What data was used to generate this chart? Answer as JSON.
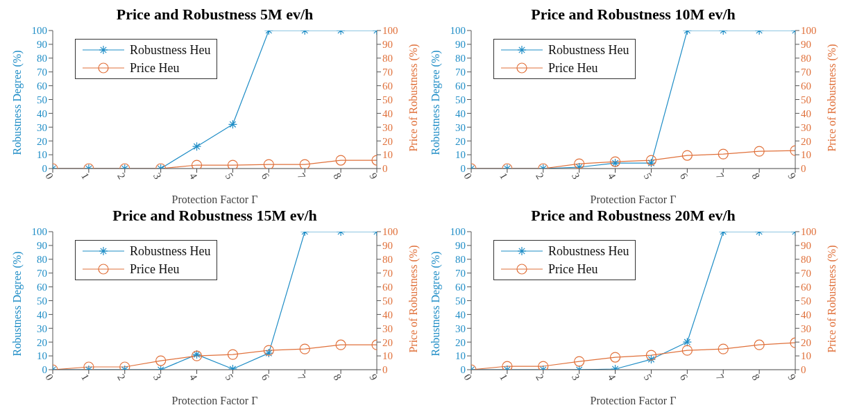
{
  "chart_data": [
    {
      "type": "line",
      "title": "Price and Robustness 5M ev/h",
      "xlabel": "Protection Factor Γ",
      "ylabel": "Robustness Degree (%)",
      "y2label": "Price of Robustness (%)",
      "x": [
        0,
        1,
        2,
        3,
        4,
        5,
        6,
        7,
        8,
        9
      ],
      "xlim": [
        0,
        9
      ],
      "xticks": [
        0,
        1,
        2,
        3,
        4,
        5,
        6,
        7,
        8,
        9
      ],
      "ylim": [
        0,
        100
      ],
      "yticks": [
        0,
        10,
        20,
        30,
        40,
        50,
        60,
        70,
        80,
        90,
        100
      ],
      "y2lim": [
        0,
        100
      ],
      "y2ticks": [
        0,
        10,
        20,
        30,
        40,
        50,
        60,
        70,
        80,
        90,
        100
      ],
      "legend": "top left",
      "grid": false,
      "series": [
        {
          "name": "Robustness Heu",
          "color": "#1f8dc6",
          "marker": "cross",
          "values": [
            0,
            0,
            0,
            0,
            16,
            32,
            100,
            100,
            100,
            100
          ]
        },
        {
          "name": "Price Heu",
          "color": "#e0703a",
          "marker": "circle",
          "axis": "y2",
          "values": [
            0,
            0,
            0,
            0,
            2.5,
            2.5,
            3,
            3,
            6,
            6
          ]
        }
      ]
    },
    {
      "type": "line",
      "title": "Price and Robustness 10M ev/h",
      "xlabel": "Protection Factor Γ",
      "ylabel": "Robustness Degree (%)",
      "y2label": "Price of Robustness (%)",
      "x": [
        0,
        1,
        2,
        3,
        4,
        5,
        6,
        7,
        8,
        9
      ],
      "xlim": [
        0,
        9
      ],
      "xticks": [
        0,
        1,
        2,
        3,
        4,
        5,
        6,
        7,
        8,
        9
      ],
      "ylim": [
        0,
        100
      ],
      "yticks": [
        0,
        10,
        20,
        30,
        40,
        50,
        60,
        70,
        80,
        90,
        100
      ],
      "y2lim": [
        0,
        100
      ],
      "y2ticks": [
        0,
        10,
        20,
        30,
        40,
        50,
        60,
        70,
        80,
        90,
        100
      ],
      "legend": "top left",
      "grid": false,
      "series": [
        {
          "name": "Robustness Heu",
          "color": "#1f8dc6",
          "marker": "cross",
          "values": [
            0,
            0,
            0,
            1,
            4,
            4,
            100,
            100,
            100,
            100
          ]
        },
        {
          "name": "Price Heu",
          "color": "#e0703a",
          "marker": "circle",
          "axis": "y2",
          "values": [
            0,
            0,
            0,
            3.5,
            5,
            6,
            9.5,
            10.5,
            12.5,
            13
          ]
        }
      ]
    },
    {
      "type": "line",
      "title": "Price and Robustness 15M ev/h",
      "xlabel": "Protection Factor Γ",
      "ylabel": "Robustness Degree (%)",
      "y2label": "Price of Robustness (%)",
      "x": [
        0,
        1,
        2,
        3,
        4,
        5,
        6,
        7,
        8,
        9
      ],
      "xlim": [
        0,
        9
      ],
      "xticks": [
        0,
        1,
        2,
        3,
        4,
        5,
        6,
        7,
        8,
        9
      ],
      "ylim": [
        0,
        100
      ],
      "yticks": [
        0,
        10,
        20,
        30,
        40,
        50,
        60,
        70,
        80,
        90,
        100
      ],
      "y2lim": [
        0,
        100
      ],
      "y2ticks": [
        0,
        10,
        20,
        30,
        40,
        50,
        60,
        70,
        80,
        90,
        100
      ],
      "legend": "top left",
      "grid": false,
      "series": [
        {
          "name": "Robustness Heu",
          "color": "#1f8dc6",
          "marker": "cross",
          "values": [
            0,
            0,
            0,
            0,
            11,
            0.5,
            12,
            100,
            100,
            100
          ]
        },
        {
          "name": "Price Heu",
          "color": "#e0703a",
          "marker": "circle",
          "axis": "y2",
          "values": [
            0,
            2,
            2,
            6.5,
            10,
            11,
            14,
            15,
            18,
            18
          ]
        }
      ]
    },
    {
      "type": "line",
      "title": "Price and Robustness 20M ev/h",
      "xlabel": "Protection Factor Γ",
      "ylabel": "Robustness Degree (%)",
      "y2label": "Price of Robustness (%)",
      "x": [
        0,
        1,
        2,
        3,
        4,
        5,
        6,
        7,
        8,
        9
      ],
      "xlim": [
        0,
        9
      ],
      "xticks": [
        0,
        1,
        2,
        3,
        4,
        5,
        6,
        7,
        8,
        9
      ],
      "ylim": [
        0,
        100
      ],
      "yticks": [
        0,
        10,
        20,
        30,
        40,
        50,
        60,
        70,
        80,
        90,
        100
      ],
      "y2lim": [
        0,
        100
      ],
      "y2ticks": [
        0,
        10,
        20,
        30,
        40,
        50,
        60,
        70,
        80,
        90,
        100
      ],
      "legend": "top left",
      "grid": false,
      "series": [
        {
          "name": "Robustness Heu",
          "color": "#1f8dc6",
          "marker": "cross",
          "values": [
            0,
            0,
            0,
            0,
            0.5,
            7.5,
            20,
            100,
            100,
            100
          ]
        },
        {
          "name": "Price Heu",
          "color": "#e0703a",
          "marker": "circle",
          "axis": "y2",
          "values": [
            0,
            2.5,
            2.5,
            6,
            9,
            10.5,
            14,
            15,
            18,
            19.5
          ]
        }
      ]
    }
  ]
}
